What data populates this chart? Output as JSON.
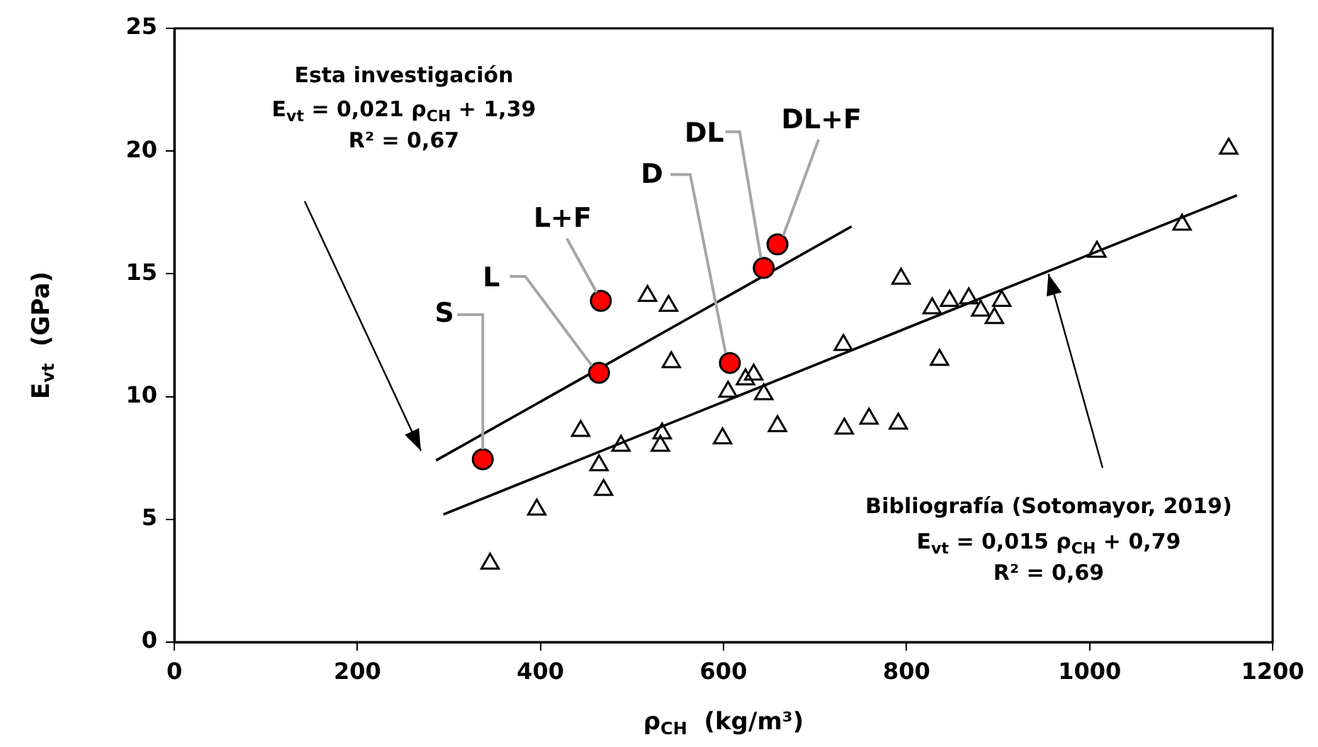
{
  "chart_data": {
    "type": "scatter",
    "xlabel": "ρ$_{CH}$  (kg/m³)",
    "ylabel": "E$_{vt}$  (GPa)",
    "xlim": [
      0,
      1200
    ],
    "xticks": [
      0,
      200,
      400,
      600,
      800,
      1000,
      1200
    ],
    "ylim": [
      0,
      25
    ],
    "yticks": [
      0,
      5,
      10,
      15,
      20,
      25
    ],
    "grid": false,
    "legend": false,
    "series": [
      {
        "type": "scatter",
        "marker": "circle",
        "color": "#ff0000",
        "x": [
          337,
          464,
          466,
          607,
          644,
          659
        ],
        "values": [
          7.45,
          10.97,
          13.9,
          11.37,
          15.24,
          16.2
        ]
      },
      {
        "type": "scatter",
        "marker": "triangle",
        "color": "#000000",
        "x": [
          345,
          396,
          444,
          464,
          469,
          488,
          517,
          531,
          533,
          540,
          543,
          599,
          605,
          624,
          633,
          644,
          659,
          731,
          732,
          759,
          791,
          794,
          828,
          836,
          847,
          868,
          881,
          896,
          904,
          1008,
          1101,
          1152
        ],
        "values": [
          3.2,
          5.4,
          8.6,
          7.2,
          6.2,
          8.0,
          14.1,
          8.0,
          8.5,
          13.7,
          11.4,
          8.3,
          10.2,
          10.7,
          10.9,
          10.1,
          8.8,
          12.1,
          8.7,
          9.1,
          8.9,
          14.8,
          13.6,
          11.5,
          13.9,
          14.0,
          13.5,
          13.2,
          13.9,
          15.9,
          17.0,
          20.1
        ]
      },
      {
        "type": "line",
        "marker": "none",
        "line_style": "solid",
        "color": "#000000",
        "x": [
          286,
          740
        ],
        "values": [
          7.4,
          16.93
        ]
      },
      {
        "type": "line",
        "marker": "none",
        "line_style": "solid",
        "color": "#000000",
        "x": [
          294,
          1161
        ],
        "values": [
          5.2,
          18.2
        ]
      }
    ],
    "annotations": [
      {
        "text": "S",
        "x": 337,
        "y": 7.45
      },
      {
        "text": "L",
        "x": 464,
        "y": 10.97
      },
      {
        "text": "L+F",
        "x": 466,
        "y": 13.9
      },
      {
        "text": "D",
        "x": 607,
        "y": 11.37
      },
      {
        "text": "DL",
        "x": 644,
        "y": 15.24
      },
      {
        "text": "DL+F",
        "x": 659,
        "y": 16.2
      },
      "Esta investigación",
      "E$_{vt}$ = 0,021 ρ$_{CH}$ + 1,39",
      "R² = 0,67",
      {
        "text": "Bibliografía (Sotomayor, 2019)",
        "x": 955,
        "y": 15.0
      },
      "E$_{vt}$ = 0,015 ρ$_{CH}$ + 0,79",
      "R² = 0,69"
    ]
  }
}
